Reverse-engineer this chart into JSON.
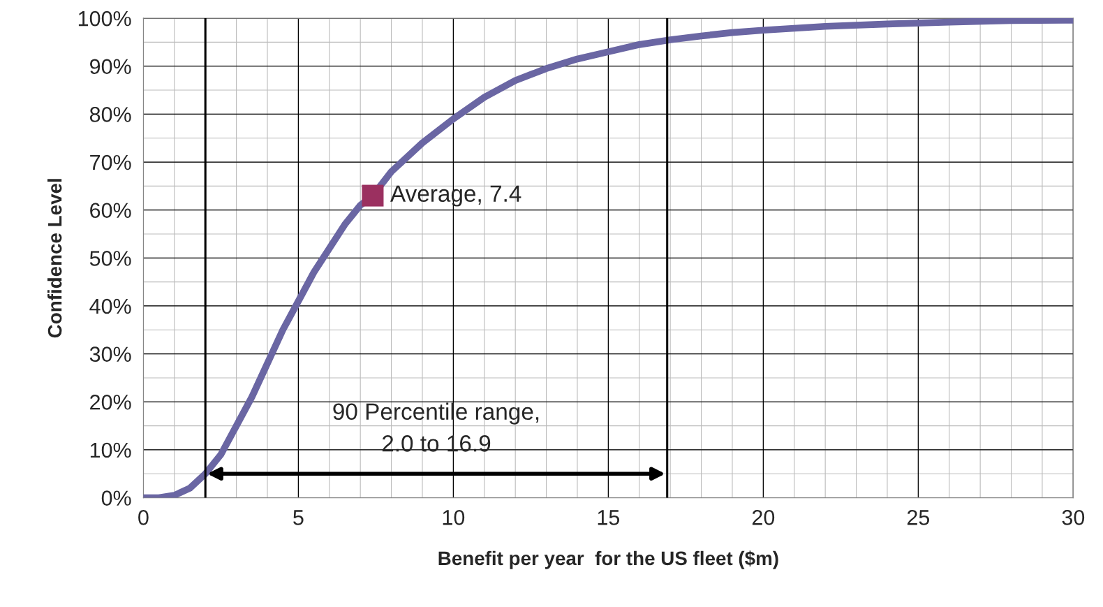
{
  "chart_data": {
    "type": "line",
    "xlabel": "Benefit per year  for the US fleet ($m)",
    "ylabel": "Confidence Level",
    "xlim": [
      0,
      30
    ],
    "xticks": [
      0,
      5,
      10,
      15,
      20,
      25,
      30
    ],
    "ylim": [
      0,
      100
    ],
    "yticks": [
      {
        "value": 0,
        "label": "0%"
      },
      {
        "value": 10,
        "label": "10%"
      },
      {
        "value": 20,
        "label": "20%"
      },
      {
        "value": 30,
        "label": "30%"
      },
      {
        "value": 40,
        "label": "40%"
      },
      {
        "value": 50,
        "label": "50%"
      },
      {
        "value": 60,
        "label": "60%"
      },
      {
        "value": 70,
        "label": "70%"
      },
      {
        "value": 80,
        "label": "80%"
      },
      {
        "value": 90,
        "label": "90%"
      },
      {
        "value": 100,
        "label": "100%"
      }
    ],
    "grid": true,
    "legend": false,
    "series": [
      {
        "color": "#6a66a3",
        "x": [
          0,
          0.5,
          1,
          1.5,
          2,
          2.5,
          3,
          3.5,
          4,
          4.5,
          5,
          5.5,
          6,
          6.5,
          7,
          7.4,
          8,
          9,
          10,
          11,
          12,
          13,
          14,
          15,
          16,
          17,
          18,
          19,
          20,
          22,
          24,
          26,
          28,
          30
        ],
        "values": [
          0,
          0,
          0.5,
          2,
          5,
          9,
          15,
          21,
          28,
          35,
          41,
          47,
          52,
          57,
          61,
          63,
          68,
          74,
          79,
          83.5,
          87,
          89.5,
          91.5,
          93,
          94.5,
          95.5,
          96.3,
          97,
          97.5,
          98.3,
          98.8,
          99.2,
          99.5,
          99.6
        ]
      },
      {
        "type": "scatter",
        "name": "Average, 7.4",
        "color": "#9b3060",
        "marker": "square",
        "x": [
          7.4
        ],
        "values": [
          63
        ]
      }
    ],
    "ref_lines": [
      {
        "axis": "x",
        "value": 2.0,
        "color": "#000000"
      },
      {
        "axis": "x",
        "value": 16.9,
        "color": "#000000"
      }
    ],
    "annotations": [
      "90 Percentile range,\n2.0 to 16.9"
    ]
  }
}
